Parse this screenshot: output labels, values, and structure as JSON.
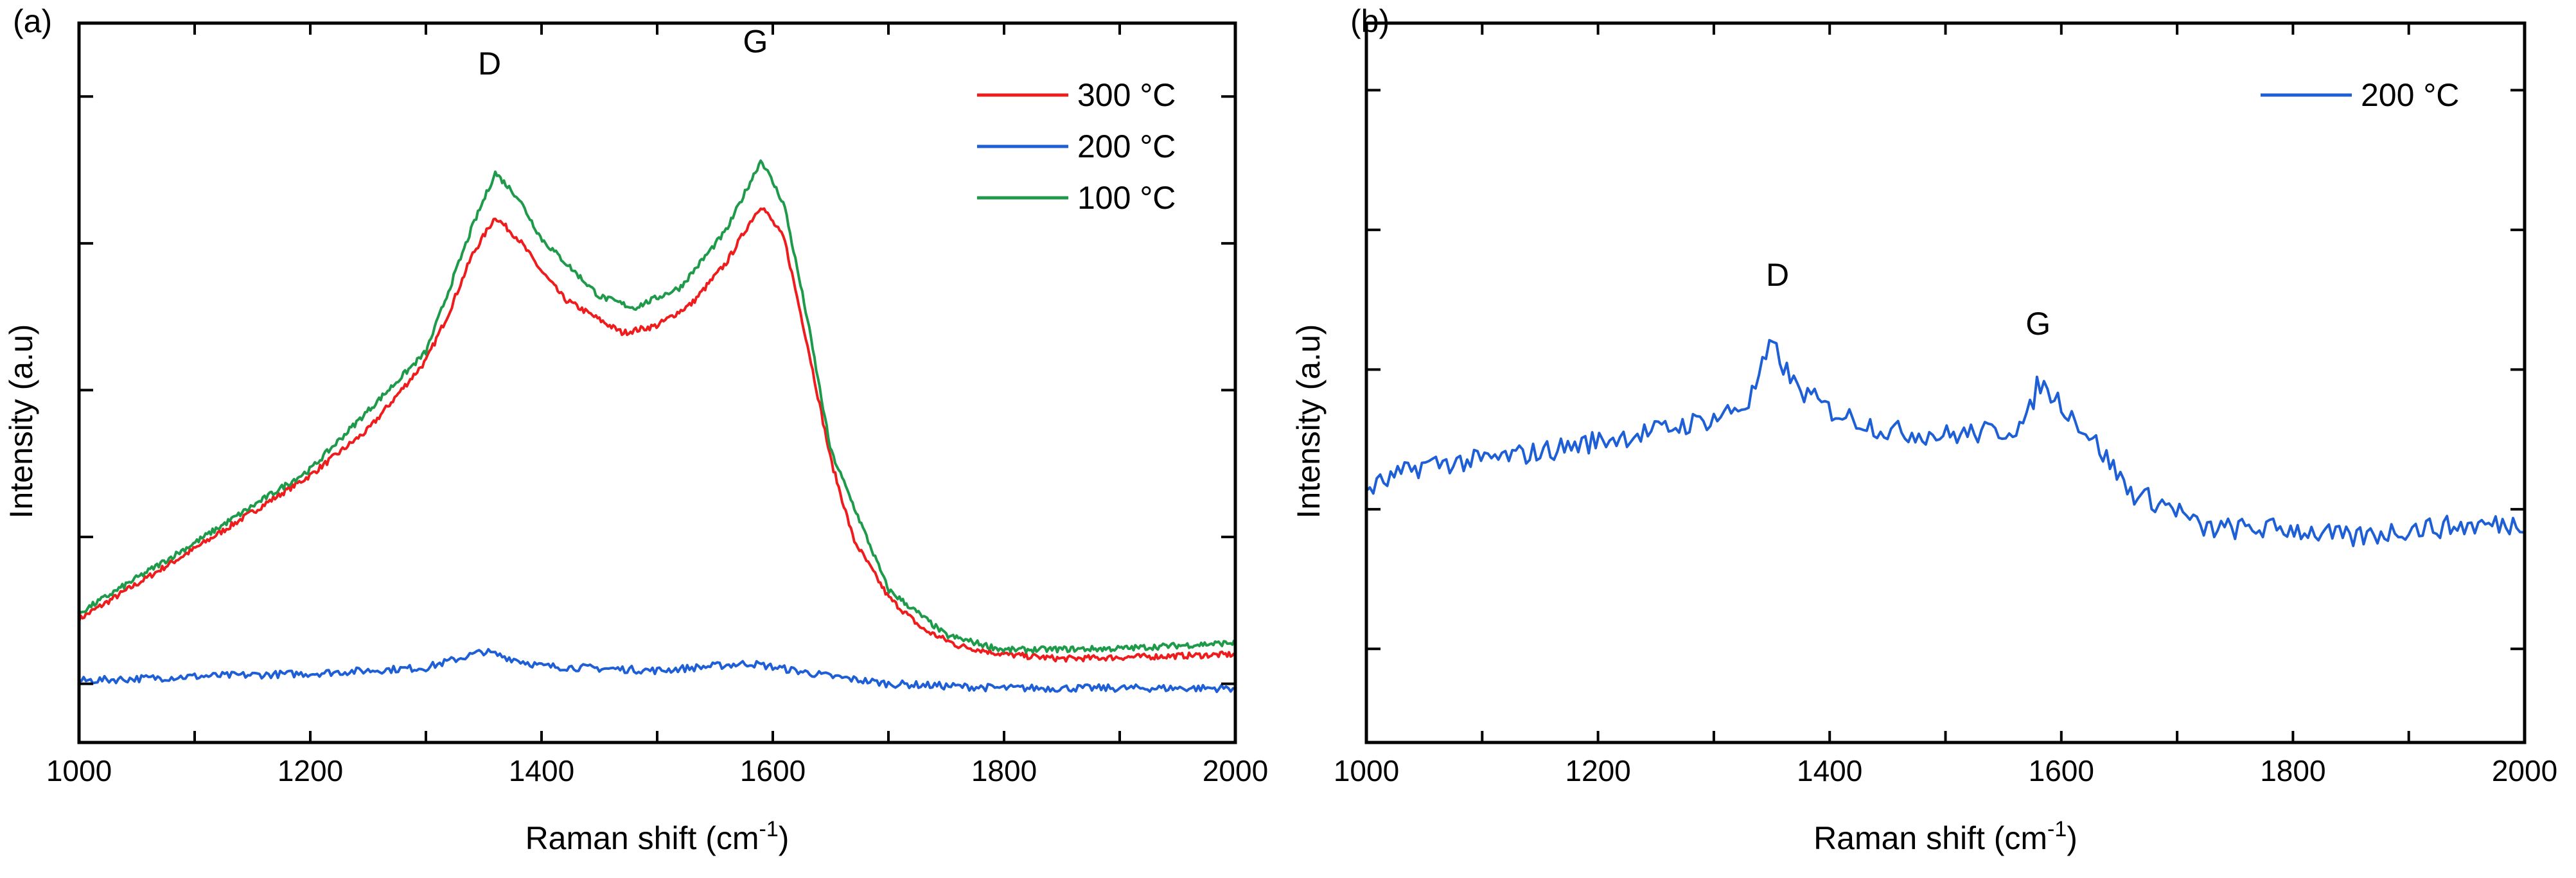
{
  "chart_data": [
    {
      "type": "line",
      "panel_label": "(a)",
      "xlabel": "Raman shift (cm",
      "xlabel_sup": "-1",
      "xlabel_end": ")",
      "ylabel": "Intensity (a.u)",
      "xlim": [
        1000,
        2000
      ],
      "ylim": [
        0.6,
        5.5
      ],
      "xticks": [
        1000,
        1200,
        1400,
        1600,
        1800,
        2000
      ],
      "yticks": [
        1,
        2,
        3,
        4,
        5
      ],
      "y_tick_labels_shown": false,
      "grid": false,
      "legend": "top-right",
      "annotations": [
        {
          "text": "D",
          "x": 1355,
          "y": 5.15
        },
        {
          "text": "G",
          "x": 1585,
          "y": 5.3
        }
      ],
      "series": [
        {
          "name": "300 °C",
          "color": "#ee1c1c",
          "x": [
            1000,
            1100,
            1200,
            1250,
            1300,
            1320,
            1340,
            1360,
            1380,
            1400,
            1420,
            1450,
            1470,
            1500,
            1530,
            1560,
            1580,
            1590,
            1610,
            1630,
            1650,
            1670,
            1700,
            1730,
            1760,
            1800,
            1850,
            1900,
            2000
          ],
          "y": [
            1.44,
            1.92,
            2.42,
            2.73,
            3.2,
            3.53,
            3.92,
            4.18,
            4.03,
            3.81,
            3.62,
            3.48,
            3.39,
            3.44,
            3.59,
            3.87,
            4.14,
            4.26,
            4.03,
            3.31,
            2.53,
            1.98,
            1.59,
            1.37,
            1.26,
            1.2,
            1.17,
            1.18,
            1.2
          ]
        },
        {
          "name": "200 °C",
          "color": "#1f5fd6",
          "x": [
            1000,
            1100,
            1200,
            1300,
            1350,
            1400,
            1500,
            1580,
            1650,
            1700,
            1800,
            2000
          ],
          "y": [
            1.02,
            1.05,
            1.07,
            1.11,
            1.22,
            1.12,
            1.09,
            1.14,
            1.05,
            1.0,
            0.97,
            0.97
          ]
        },
        {
          "name": "100 °C",
          "color": "#1f9a4a",
          "x": [
            1000,
            1100,
            1200,
            1300,
            1340,
            1360,
            1380,
            1400,
            1450,
            1480,
            1520,
            1560,
            1590,
            1610,
            1630,
            1650,
            1700,
            1750,
            1800,
            1900,
            2000
          ],
          "y": [
            1.48,
            1.96,
            2.46,
            3.26,
            4.11,
            4.48,
            4.31,
            4.03,
            3.64,
            3.56,
            3.7,
            4.09,
            4.57,
            4.26,
            3.48,
            2.59,
            1.64,
            1.33,
            1.23,
            1.24,
            1.28
          ]
        }
      ]
    },
    {
      "type": "line",
      "panel_label": "(b)",
      "xlabel": "Raman shift (cm",
      "xlabel_sup": "-1",
      "xlabel_end": ")",
      "ylabel": "Intensity (a.u)",
      "xlim": [
        1000,
        2000
      ],
      "ylim": [
        0.33,
        5.48
      ],
      "xticks": [
        1000,
        1200,
        1400,
        1600,
        1800,
        2000
      ],
      "yticks": [
        1,
        2,
        3,
        4,
        5
      ],
      "y_tick_labels_shown": false,
      "grid": false,
      "legend": "top-right",
      "annotations": [
        {
          "text": "D",
          "x": 1355,
          "y": 3.6
        },
        {
          "text": "G",
          "x": 1580,
          "y": 3.25
        }
      ],
      "series": [
        {
          "name": "200 °C",
          "color": "#1f5fd6",
          "x": [
            1000,
            1050,
            1100,
            1150,
            1200,
            1250,
            1300,
            1330,
            1350,
            1370,
            1400,
            1450,
            1500,
            1550,
            1570,
            1580,
            1600,
            1630,
            1660,
            1700,
            1720,
            1800,
            1850,
            1900,
            2000
          ],
          "y": [
            2.14,
            2.32,
            2.35,
            2.41,
            2.49,
            2.56,
            2.65,
            2.76,
            3.18,
            2.88,
            2.71,
            2.56,
            2.53,
            2.56,
            2.62,
            2.91,
            2.76,
            2.47,
            2.12,
            2.0,
            1.86,
            1.86,
            1.79,
            1.86,
            1.9
          ]
        }
      ]
    }
  ]
}
